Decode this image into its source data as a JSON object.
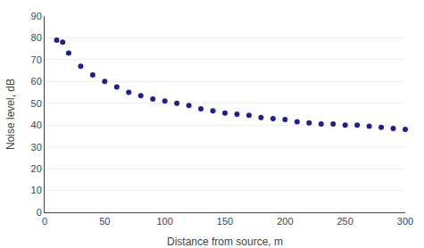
{
  "chart_data": {
    "type": "scatter",
    "x": [
      10,
      15,
      20,
      30,
      40,
      50,
      60,
      70,
      80,
      90,
      100,
      110,
      120,
      130,
      140,
      150,
      160,
      170,
      180,
      190,
      200,
      210,
      220,
      230,
      240,
      250,
      260,
      270,
      280,
      290,
      300
    ],
    "values": [
      79,
      78,
      73,
      67,
      63,
      60,
      57.5,
      55,
      53.5,
      52,
      51,
      50,
      49,
      47.5,
      46.5,
      45.5,
      45,
      44.5,
      43.5,
      43,
      42.5,
      41.5,
      41,
      40.5,
      40.5,
      40,
      40,
      39.5,
      39,
      38.5,
      38
    ],
    "color": "#1f1f8f",
    "xlabel": "Distance from source, m",
    "ylabel": "Noise level, dB",
    "xlim": [
      0,
      300
    ],
    "ylim": [
      0,
      90
    ],
    "xticks": [
      0,
      50,
      100,
      150,
      200,
      250,
      300
    ],
    "yticks": [
      0,
      10,
      20,
      30,
      40,
      50,
      60,
      70,
      80,
      90
    ],
    "grid": "y"
  }
}
